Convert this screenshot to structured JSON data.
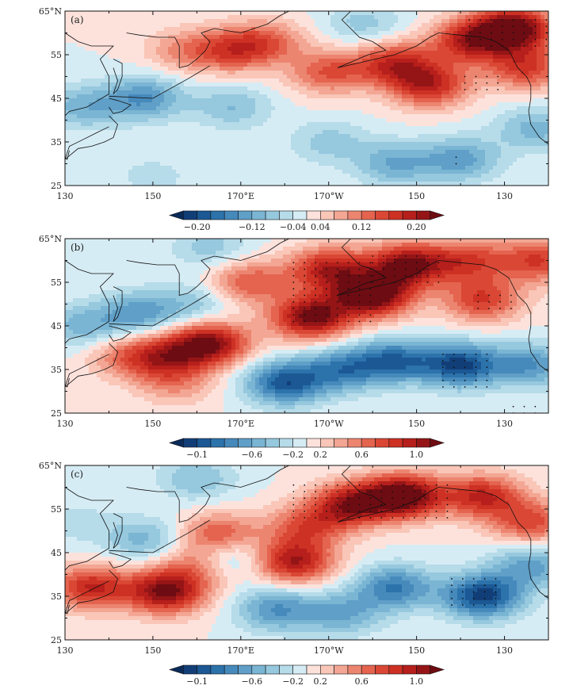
{
  "chart_data": [
    {
      "type": "heatmap",
      "panel_label": "(a)",
      "title": "",
      "xlabel": "",
      "ylabel": "",
      "xlim": [
        130,
        240
      ],
      "ylim": [
        25,
        65
      ],
      "y_ticks": [
        "65°N",
        "55",
        "45",
        "35",
        "25"
      ],
      "x_ticks": [
        "130",
        "150",
        "170°E",
        "170°W",
        "150",
        "130"
      ],
      "colorbar": {
        "label_text": [
          "−0.20",
          "−0.12",
          "−0.04",
          "0.04",
          "0.12",
          "0.20"
        ],
        "levels": [
          -0.2,
          -0.18,
          -0.16,
          -0.14,
          -0.12,
          -0.1,
          -0.08,
          -0.06,
          -0.04,
          -0.02,
          0,
          0.02,
          0.04,
          0.06,
          0.08,
          0.1,
          0.12,
          0.14,
          0.16,
          0.18,
          0.2
        ]
      },
      "features": [
        {
          "lon": 232,
          "lat": 61,
          "value": 0.21
        },
        {
          "lon": 222,
          "lat": 58,
          "value": 0.14
        },
        {
          "lon": 205,
          "lat": 53,
          "value": 0.13
        },
        {
          "lon": 213,
          "lat": 48,
          "value": 0.14
        },
        {
          "lon": 190,
          "lat": 51,
          "value": 0.1
        },
        {
          "lon": 168,
          "lat": 56,
          "value": 0.1
        },
        {
          "lon": 176,
          "lat": 58,
          "value": 0.08
        },
        {
          "lon": 235,
          "lat": 52,
          "value": 0.12
        },
        {
          "lon": 157,
          "lat": 56,
          "value": 0.06
        },
        {
          "lon": 148,
          "lat": 45,
          "value": -0.1
        },
        {
          "lon": 134,
          "lat": 43,
          "value": -0.07
        },
        {
          "lon": 168,
          "lat": 43,
          "value": -0.06
        },
        {
          "lon": 190,
          "lat": 35,
          "value": -0.05
        },
        {
          "lon": 205,
          "lat": 30,
          "value": -0.08
        },
        {
          "lon": 220,
          "lat": 31,
          "value": -0.09
        },
        {
          "lon": 237,
          "lat": 38,
          "value": -0.07
        },
        {
          "lon": 198,
          "lat": 62,
          "value": -0.05
        },
        {
          "lon": 150,
          "lat": 27,
          "value": -0.03
        }
      ],
      "stipple_regions": [
        {
          "lon": [
            222,
            240
          ],
          "lat": [
            57,
            64
          ]
        },
        {
          "lon": [
            221,
            230
          ],
          "lat": [
            47,
            50
          ]
        },
        {
          "lon": [
            219,
            221
          ],
          "lat": [
            30,
            32
          ]
        }
      ]
    },
    {
      "type": "heatmap",
      "panel_label": "(b)",
      "title": "",
      "xlabel": "",
      "ylabel": "",
      "xlim": [
        130,
        240
      ],
      "ylim": [
        25,
        65
      ],
      "y_ticks": [
        "65°N",
        "55",
        "45",
        "35",
        "25"
      ],
      "x_ticks": [
        "130",
        "150",
        "170°E",
        "170°W",
        "150",
        "130"
      ],
      "colorbar": {
        "label_text": [
          "−0.1",
          "−0.6",
          "−0.2",
          "0.2",
          "0.6",
          "1.0"
        ],
        "levels": [
          -1.0,
          -0.9,
          -0.8,
          -0.7,
          -0.6,
          -0.5,
          -0.4,
          -0.3,
          -0.2,
          -0.1,
          0,
          0.1,
          0.2,
          0.3,
          0.4,
          0.5,
          0.6,
          0.7,
          0.8,
          0.9,
          1.0
        ]
      },
      "features": [
        {
          "lon": 200,
          "lat": 52,
          "value": 1.05
        },
        {
          "lon": 186,
          "lat": 47,
          "value": 0.95
        },
        {
          "lon": 208,
          "lat": 59,
          "value": 0.9
        },
        {
          "lon": 190,
          "lat": 58,
          "value": 0.75
        },
        {
          "lon": 163,
          "lat": 41,
          "value": 0.9
        },
        {
          "lon": 153,
          "lat": 38,
          "value": 0.55
        },
        {
          "lon": 225,
          "lat": 51,
          "value": 0.6
        },
        {
          "lon": 222,
          "lat": 60,
          "value": 0.55
        },
        {
          "lon": 172,
          "lat": 55,
          "value": 0.5
        },
        {
          "lon": 238,
          "lat": 60,
          "value": 0.6
        },
        {
          "lon": 144,
          "lat": 38,
          "value": 0.35
        },
        {
          "lon": 155,
          "lat": 32,
          "value": 0.3
        },
        {
          "lon": 220,
          "lat": 36,
          "value": -0.8
        },
        {
          "lon": 205,
          "lat": 37,
          "value": -0.65
        },
        {
          "lon": 180,
          "lat": 32,
          "value": -0.75
        },
        {
          "lon": 193,
          "lat": 35,
          "value": -0.55
        },
        {
          "lon": 147,
          "lat": 48,
          "value": -0.45
        },
        {
          "lon": 134,
          "lat": 45,
          "value": -0.35
        },
        {
          "lon": 160,
          "lat": 50,
          "value": -0.25
        },
        {
          "lon": 163,
          "lat": 63,
          "value": -0.25
        },
        {
          "lon": 236,
          "lat": 36,
          "value": -0.5
        }
      ],
      "stipple_regions": [
        {
          "lon": [
            182,
            200
          ],
          "lat": [
            46,
            60
          ]
        },
        {
          "lon": [
            200,
            215
          ],
          "lat": [
            55,
            62
          ]
        },
        {
          "lon": [
            224,
            232
          ],
          "lat": [
            49,
            53
          ]
        },
        {
          "lon": [
            216,
            228
          ],
          "lat": [
            31,
            39
          ]
        },
        {
          "lon": [
            232,
            237
          ],
          "lat": [
            25,
            27
          ]
        }
      ]
    },
    {
      "type": "heatmap",
      "panel_label": "(c)",
      "title": "",
      "xlabel": "",
      "ylabel": "",
      "xlim": [
        130,
        240
      ],
      "ylim": [
        25,
        65
      ],
      "y_ticks": [
        "65°N",
        "55",
        "45",
        "35",
        "25"
      ],
      "x_ticks": [
        "130",
        "150",
        "170°E",
        "170°W",
        "150",
        "130"
      ],
      "colorbar": {
        "label_text": [
          "−0.1",
          "−0.6",
          "−0.2",
          "0.2",
          "0.6",
          "1.0"
        ],
        "levels": [
          -1.0,
          -0.9,
          -0.8,
          -0.7,
          -0.6,
          -0.5,
          -0.4,
          -0.3,
          -0.2,
          -0.1,
          0,
          0.1,
          0.2,
          0.3,
          0.4,
          0.5,
          0.6,
          0.7,
          0.8,
          0.9,
          1.0
        ]
      },
      "features": [
        {
          "lon": 207,
          "lat": 58,
          "value": 1.05
        },
        {
          "lon": 195,
          "lat": 56,
          "value": 0.8
        },
        {
          "lon": 225,
          "lat": 58,
          "value": 0.7
        },
        {
          "lon": 236,
          "lat": 52,
          "value": 0.55
        },
        {
          "lon": 153,
          "lat": 36,
          "value": 0.9
        },
        {
          "lon": 136,
          "lat": 37,
          "value": 0.7
        },
        {
          "lon": 182,
          "lat": 43,
          "value": 0.8
        },
        {
          "lon": 165,
          "lat": 49,
          "value": 0.55
        },
        {
          "lon": 185,
          "lat": 51,
          "value": 0.5
        },
        {
          "lon": 160,
          "lat": 42,
          "value": 0.4
        },
        {
          "lon": 225,
          "lat": 35,
          "value": -0.85
        },
        {
          "lon": 205,
          "lat": 37,
          "value": -0.6
        },
        {
          "lon": 178,
          "lat": 32,
          "value": -0.5
        },
        {
          "lon": 193,
          "lat": 31,
          "value": -0.4
        },
        {
          "lon": 167,
          "lat": 44,
          "value": -0.4
        },
        {
          "lon": 148,
          "lat": 48,
          "value": -0.35
        },
        {
          "lon": 160,
          "lat": 62,
          "value": -0.3
        },
        {
          "lon": 132,
          "lat": 52,
          "value": -0.15
        },
        {
          "lon": 236,
          "lat": 42,
          "value": -0.45
        }
      ],
      "stipple_regions": [
        {
          "lon": [
            182,
            218
          ],
          "lat": [
            53,
            61
          ]
        },
        {
          "lon": [
            218,
            230
          ],
          "lat": [
            33,
            39
          ]
        }
      ]
    }
  ]
}
